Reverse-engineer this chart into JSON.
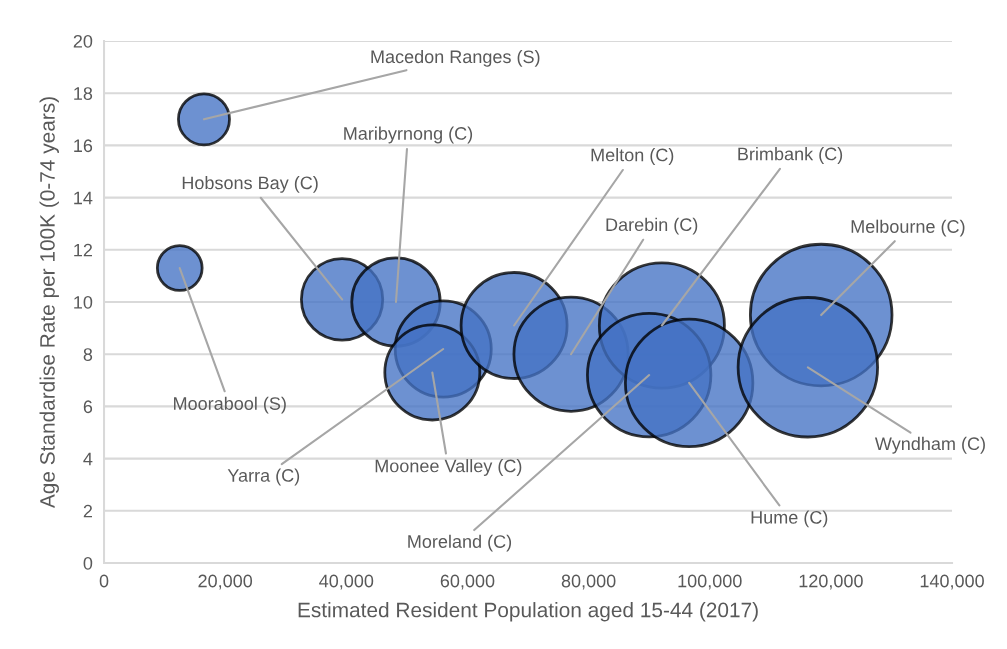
{
  "chart_data": {
    "type": "bubble",
    "xlabel": "Estimated Resident Population aged 15-44 (2017)",
    "ylabel": "Age Standardise Rate per 100K (0-74 years)",
    "series": [
      {
        "color": "#4472c4",
        "x": [
          16500,
          12500,
          39300,
          48200,
          56000,
          54200,
          67700,
          77100,
          92100,
          90000,
          96600,
          118400,
          116200
        ],
        "values": [
          17.0,
          11.3,
          10.1,
          10.0,
          8.2,
          7.3,
          9.1,
          8.0,
          9.1,
          7.2,
          6.9,
          9.5,
          7.5
        ],
        "sizes": [
          0.13,
          0.1,
          0.33,
          0.39,
          0.46,
          0.45,
          0.56,
          0.65,
          0.78,
          0.76,
          0.81,
          1,
          0.97
        ]
      }
    ],
    "relative": false,
    "xlim": [
      0,
      140000
    ],
    "xticks": [
      0,
      {
        "value": 20000,
        "label": "20,000"
      },
      {
        "value": 40000,
        "label": "40,000"
      },
      {
        "value": 60000,
        "label": "60,000"
      },
      {
        "value": 80000,
        "label": "80,000"
      },
      {
        "value": 100000,
        "label": "100,000"
      },
      {
        "value": 120000,
        "label": "120,000"
      },
      {
        "value": 140000,
        "label": "140,000"
      }
    ],
    "ylim": [
      0,
      20
    ],
    "yticks": [
      0,
      2,
      4,
      6,
      8,
      10,
      12,
      14,
      16,
      18,
      20
    ],
    "grid": "y",
    "legend": false,
    "annotations": [
      {
        "text": "Macedon Ranges (S)",
        "x": 16500,
        "y": 17.0
      },
      {
        "text": "Moorabool (S)",
        "x": 12500,
        "y": 11.3
      },
      {
        "text": "Hobsons Bay (C)",
        "x": 39300,
        "y": 10.1
      },
      {
        "text": "Maribyrnong (C)",
        "x": 48200,
        "y": 10.0
      },
      {
        "text": "Yarra (C)",
        "x": 56000,
        "y": 8.2
      },
      {
        "text": "Moonee Valley (C)",
        "x": 54200,
        "y": 7.3
      },
      {
        "text": "Melton (C)",
        "x": 67700,
        "y": 9.1
      },
      {
        "text": "Darebin (C)",
        "x": 77100,
        "y": 8.0
      },
      {
        "text": "Brimbank (C)",
        "x": 92100,
        "y": 9.1
      },
      {
        "text": "Moreland (C)",
        "x": 90000,
        "y": 7.2
      },
      {
        "text": "Hume (C)",
        "x": 96600,
        "y": 6.9
      },
      {
        "text": "Melbourne (C)",
        "x": 118400,
        "y": 9.5
      },
      {
        "text": "Wyndham (C)",
        "x": 116200,
        "y": 7.5
      }
    ]
  }
}
